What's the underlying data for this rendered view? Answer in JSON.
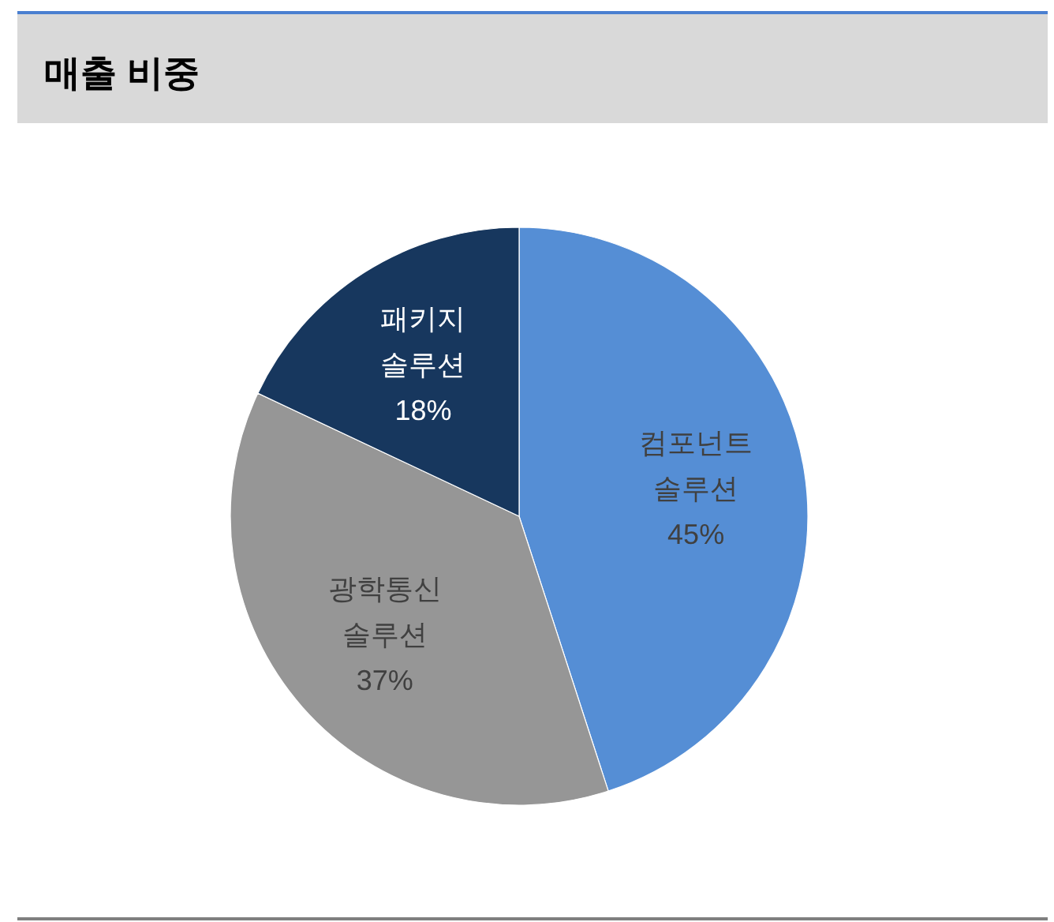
{
  "chart_data": {
    "type": "pie",
    "title": "매출 비중",
    "categories": [
      "컴포넌트 솔루션",
      "광학통신 솔루션",
      "패키지 솔루션"
    ],
    "values": [
      45,
      37,
      18
    ],
    "colors": [
      "#558ed5",
      "#969696",
      "#17375e"
    ],
    "value_labels": [
      "45%",
      "37%",
      "18%"
    ]
  }
}
